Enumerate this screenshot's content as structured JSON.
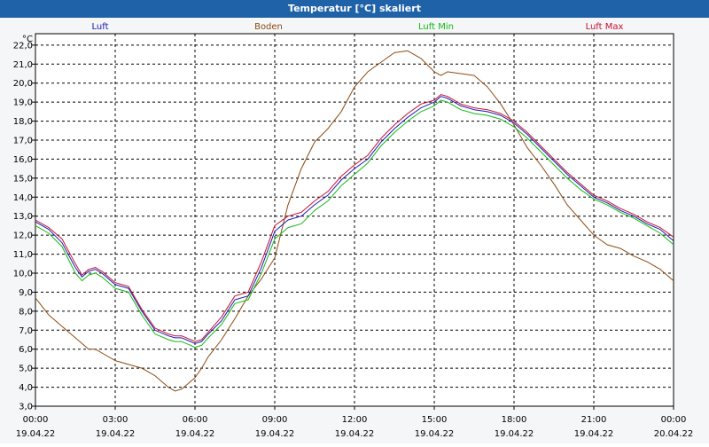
{
  "window": {
    "title": "Temperatur [°C] skaliert"
  },
  "chart_data": {
    "type": "line",
    "title": "Temperatur [°C] skaliert",
    "ylabel": "°C",
    "xlabel": "",
    "ylim": [
      3.0,
      22.6
    ],
    "yticks": [
      "3,0",
      "4,0",
      "5,0",
      "6,0",
      "7,0",
      "8,0",
      "9,0",
      "10,0",
      "11,0",
      "12,0",
      "13,0",
      "14,0",
      "15,0",
      "16,0",
      "17,0",
      "18,0",
      "19,0",
      "20,0",
      "21,0",
      "22,0"
    ],
    "xlim": [
      0,
      24
    ],
    "xticks": [
      {
        "time": "00:00",
        "date": "19.04.22"
      },
      {
        "time": "03:00",
        "date": "19.04.22"
      },
      {
        "time": "06:00",
        "date": "19.04.22"
      },
      {
        "time": "09:00",
        "date": "19.04.22"
      },
      {
        "time": "12:00",
        "date": "19.04.22"
      },
      {
        "time": "15:00",
        "date": "19.04.22"
      },
      {
        "time": "18:00",
        "date": "19.04.22"
      },
      {
        "time": "21:00",
        "date": "19.04.22"
      },
      {
        "time": "00:00",
        "date": "20.04.22"
      }
    ],
    "grid": true,
    "legend_position": "top",
    "series": [
      {
        "name": "Luft",
        "color": "#1a1ab4",
        "key": "luft"
      },
      {
        "name": "Boden",
        "color": "#8b4a12",
        "key": "boden"
      },
      {
        "name": "Luft Min",
        "color": "#11b911",
        "key": "min"
      },
      {
        "name": "Luft Max",
        "color": "#c8102e",
        "key": "max"
      }
    ],
    "x_hours": [
      0,
      0.5,
      1,
      1.5,
      1.75,
      2,
      2.25,
      2.5,
      3,
      3.5,
      4,
      4.5,
      5,
      5.25,
      5.5,
      6,
      6.25,
      6.5,
      7,
      7.5,
      8,
      8.5,
      9,
      9.5,
      10,
      10.5,
      11,
      11.5,
      12,
      12.5,
      13,
      13.5,
      14,
      14.5,
      15,
      15.25,
      15.5,
      16,
      16.5,
      17,
      17.5,
      18,
      18.5,
      19,
      19.5,
      20,
      20.5,
      21,
      21.5,
      22,
      22.5,
      23,
      23.5,
      24
    ],
    "luft": [
      12.7,
      12.3,
      11.6,
      10.3,
      9.8,
      10.1,
      10.2,
      10.0,
      9.4,
      9.2,
      8.0,
      7.0,
      6.7,
      6.6,
      6.6,
      6.3,
      6.4,
      6.8,
      7.5,
      8.6,
      8.8,
      10.3,
      12.2,
      12.8,
      13.0,
      13.6,
      14.1,
      14.9,
      15.5,
      16.0,
      16.9,
      17.6,
      18.2,
      18.7,
      19.0,
      19.3,
      19.2,
      18.8,
      18.6,
      18.5,
      18.3,
      17.9,
      17.3,
      16.6,
      15.9,
      15.2,
      14.6,
      14.0,
      13.7,
      13.3,
      13.0,
      12.6,
      12.3,
      11.7
    ],
    "boden": [
      8.7,
      7.8,
      7.2,
      6.6,
      6.3,
      6.0,
      6.0,
      5.8,
      5.4,
      5.2,
      5.0,
      4.6,
      4.0,
      3.8,
      3.9,
      4.5,
      5.0,
      5.6,
      6.5,
      7.6,
      8.8,
      9.7,
      10.8,
      13.6,
      15.5,
      16.9,
      17.6,
      18.5,
      19.8,
      20.6,
      21.1,
      21.6,
      21.7,
      21.3,
      20.6,
      20.4,
      20.6,
      20.5,
      20.4,
      19.8,
      18.9,
      17.8,
      16.6,
      15.7,
      14.7,
      13.6,
      12.8,
      12.0,
      11.5,
      11.3,
      10.9,
      10.6,
      10.2,
      9.6
    ],
    "min": [
      12.5,
      12.1,
      11.4,
      10.0,
      9.6,
      9.9,
      10.0,
      9.8,
      9.2,
      9.0,
      7.8,
      6.8,
      6.5,
      6.4,
      6.4,
      6.1,
      6.2,
      6.6,
      7.3,
      8.4,
      8.6,
      10.0,
      11.8,
      12.4,
      12.6,
      13.3,
      13.8,
      14.6,
      15.2,
      15.8,
      16.7,
      17.4,
      18.0,
      18.5,
      18.8,
      19.1,
      19.0,
      18.6,
      18.4,
      18.3,
      18.1,
      17.7,
      17.1,
      16.4,
      15.7,
      15.0,
      14.4,
      13.9,
      13.6,
      13.2,
      12.9,
      12.5,
      12.1,
      11.5
    ],
    "max": [
      12.8,
      12.4,
      11.8,
      10.5,
      9.9,
      10.2,
      10.3,
      10.1,
      9.5,
      9.3,
      8.1,
      7.1,
      6.8,
      6.7,
      6.7,
      6.4,
      6.5,
      6.9,
      7.7,
      8.8,
      9.0,
      10.6,
      12.5,
      13.0,
      13.2,
      13.8,
      14.3,
      15.1,
      15.7,
      16.2,
      17.1,
      17.8,
      18.4,
      18.9,
      19.1,
      19.4,
      19.3,
      18.9,
      18.7,
      18.6,
      18.4,
      18.0,
      17.4,
      16.7,
      16.0,
      15.3,
      14.7,
      14.1,
      13.8,
      13.4,
      13.1,
      12.7,
      12.4,
      11.9
    ]
  }
}
